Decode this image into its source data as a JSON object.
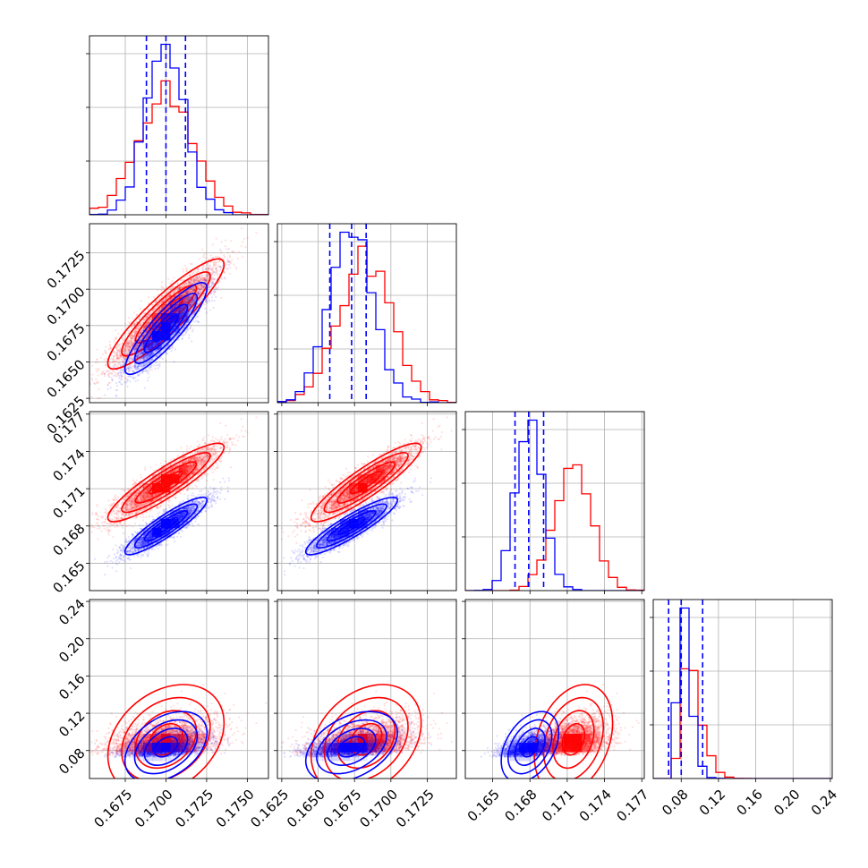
{
  "chart_data": {
    "type": "corner",
    "parameters": [
      "",
      "",
      "",
      ""
    ],
    "series_colors": {
      "red": "#ff0000",
      "blue": "#0000ff"
    },
    "grid": true,
    "quantile_lines_series": "blue",
    "axes": [
      {
        "range": [
          0.1653,
          0.1763
        ],
        "ticks": [
          0.1675,
          0.17,
          0.1725,
          0.175
        ],
        "tick_labels": [
          "0.1675",
          "0.1700",
          "0.1725",
          "0.1750"
        ]
      },
      {
        "range": [
          0.1622,
          0.1745
        ],
        "ticks": [
          0.1625,
          0.165,
          0.1675,
          0.17,
          0.1725
        ],
        "tick_labels": [
          "0.1625",
          "0.1650",
          "0.1675",
          "0.1700",
          "0.1725"
        ]
      },
      {
        "range": [
          0.1628,
          0.1772
        ],
        "ticks": [
          0.165,
          0.168,
          0.171,
          0.174,
          0.177
        ],
        "tick_labels": [
          "0.165",
          "0.168",
          "0.171",
          "0.174",
          "0.177"
        ]
      },
      {
        "range": [
          0.05,
          0.242
        ],
        "ticks": [
          0.08,
          0.12,
          0.16,
          0.2,
          0.24
        ],
        "tick_labels": [
          "0.08",
          "0.12",
          "0.16",
          "0.20",
          "0.24"
        ]
      }
    ],
    "series": [
      {
        "name": "",
        "color": "#ff0000",
        "means": [
          0.17,
          0.1683,
          0.1715,
          0.092
        ],
        "stds": [
          0.0017,
          0.0018,
          0.0015,
          0.028
        ],
        "correlations": [
          [
            1,
            0.9,
            0.9,
            0.3
          ],
          [
            0.9,
            1,
            0.9,
            0.3
          ],
          [
            0.9,
            0.9,
            1,
            0.3
          ],
          [
            0.3,
            0.3,
            0.3,
            1
          ]
        ]
      },
      {
        "name": "",
        "color": "#0000ff",
        "means": [
          0.17,
          0.1673,
          0.168,
          0.084
        ],
        "stds": [
          0.0012,
          0.0015,
          0.0011,
          0.018
        ],
        "correlations": [
          [
            1,
            0.88,
            0.9,
            0.4
          ],
          [
            0.88,
            1,
            0.9,
            0.4
          ],
          [
            0.9,
            0.9,
            1,
            0.4
          ],
          [
            0.4,
            0.4,
            0.4,
            1
          ]
        ]
      }
    ],
    "quantiles_blue": [
      [
        0.1688,
        0.17,
        0.1712
      ],
      [
        0.1658,
        0.1673,
        0.1683
      ],
      [
        0.1668,
        0.1679,
        0.1691
      ],
      [
        0.0665,
        0.08,
        0.103
      ]
    ]
  }
}
